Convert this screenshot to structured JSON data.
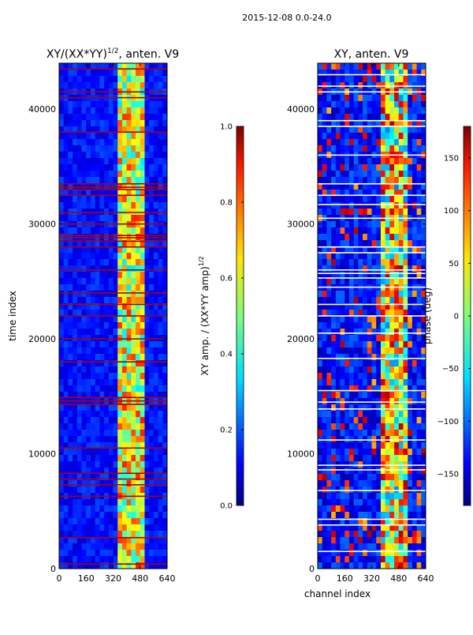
{
  "figure": {
    "suptitle": "2015-12-08 0.0-24.0"
  },
  "chart_data": [
    {
      "type": "heatmap",
      "title_main": "XY/(XX*YY)",
      "title_exp": "1/2",
      "title_tail": ", anten. V9",
      "xlabel": "",
      "ylabel": "time index",
      "xlim": [
        0,
        640
      ],
      "ylim": [
        0,
        44000
      ],
      "xticks": [
        "0",
        "160",
        "320",
        "480",
        "640"
      ],
      "xtick_values": [
        0,
        160,
        320,
        480,
        640
      ],
      "yticks": [
        "0",
        "10000",
        "20000",
        "30000",
        "40000"
      ],
      "ytick_values": [
        0,
        10000,
        20000,
        30000,
        40000
      ],
      "active_band": [
        360,
        500
      ],
      "flag_rows": [
        400,
        2700,
        6300,
        7300,
        7800,
        8300,
        10500,
        14300,
        14600,
        14900,
        18000,
        20000,
        22000,
        23000,
        24000,
        26000,
        28000,
        28500,
        28800,
        29000,
        30000,
        31000,
        32500,
        33000,
        33200,
        33500,
        38000,
        41000,
        41500,
        43500
      ],
      "colorbar": {
        "label_main": "XY amp. / (XX*YY amp)",
        "label_exp": "1/2",
        "range": [
          0.0,
          1.0
        ],
        "ticks": [
          "0.0",
          "0.2",
          "0.4",
          "0.6",
          "0.8",
          "1.0"
        ],
        "tick_values": [
          0.0,
          0.2,
          0.4,
          0.6,
          0.8,
          1.0
        ]
      }
    },
    {
      "type": "heatmap",
      "title_main": "XY, anten. V9",
      "xlabel": "channel index",
      "ylabel": "",
      "xlim": [
        0,
        640
      ],
      "ylim": [
        0,
        44000
      ],
      "xticks": [
        "0",
        "160",
        "320",
        "480",
        "640"
      ],
      "xtick_values": [
        0,
        160,
        320,
        480,
        640
      ],
      "yticks": [
        "0",
        "10000",
        "20000",
        "30000",
        "40000"
      ],
      "ytick_values": [
        0,
        10000,
        20000,
        30000,
        40000
      ],
      "active_band": [
        380,
        520
      ],
      "flag_rows": [
        1500,
        3800,
        4300,
        6800,
        8600,
        9000,
        11200,
        13900,
        14500,
        15500,
        18300,
        20500,
        22000,
        23000,
        24500,
        25300,
        25700,
        26000,
        27500,
        28000,
        30500,
        31700,
        32500,
        33500,
        36000,
        38500,
        39000,
        41500,
        42000,
        43000
      ],
      "colorbar": {
        "label": "phase (deg)",
        "range": [
          -180,
          180
        ],
        "ticks": [
          "−150",
          "−100",
          "−50",
          "0",
          "50",
          "100",
          "150"
        ],
        "tick_values": [
          -150,
          -100,
          -50,
          0,
          50,
          100,
          150
        ]
      }
    }
  ]
}
